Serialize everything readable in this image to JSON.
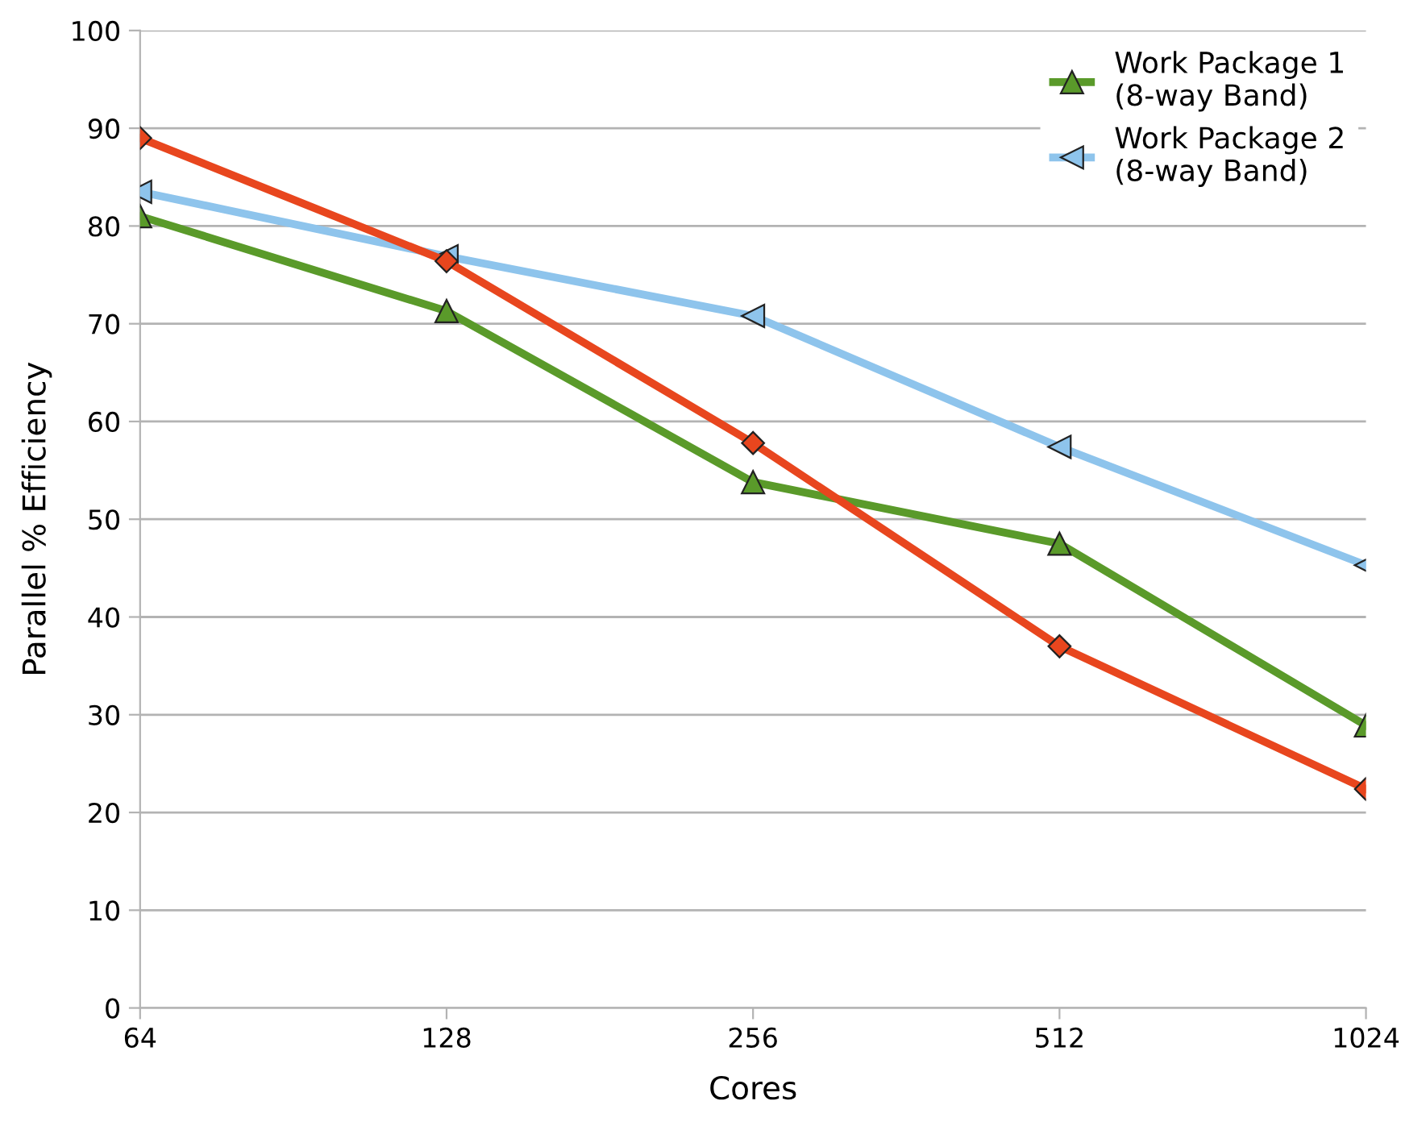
{
  "chart_data": {
    "type": "line",
    "xlabel": "Cores",
    "ylabel": "Parallel % Efficiency",
    "categories": [
      "64",
      "128",
      "256",
      "512",
      "1024"
    ],
    "series": [
      {
        "color": "#e8461e",
        "marker": "diamond",
        "values": [
          89.0,
          76.4,
          57.8,
          37.0,
          22.4
        ]
      },
      {
        "name": "Work Package 1\n(8-way Band)",
        "color": "#5a9a2a",
        "marker": "triangle",
        "values": [
          81.0,
          71.3,
          53.8,
          47.5,
          28.9
        ]
      },
      {
        "name": "Work Package 2\n(8-way Band)",
        "color": "#8ec4ec",
        "marker": "triangle_left",
        "values": [
          83.5,
          76.9,
          70.8,
          57.4,
          45.3
        ]
      }
    ],
    "ylim": [
      0,
      100
    ],
    "yticks": [
      0,
      10,
      20,
      30,
      40,
      50,
      60,
      70,
      80,
      90,
      100
    ],
    "grid": "y",
    "legend": "top right"
  }
}
